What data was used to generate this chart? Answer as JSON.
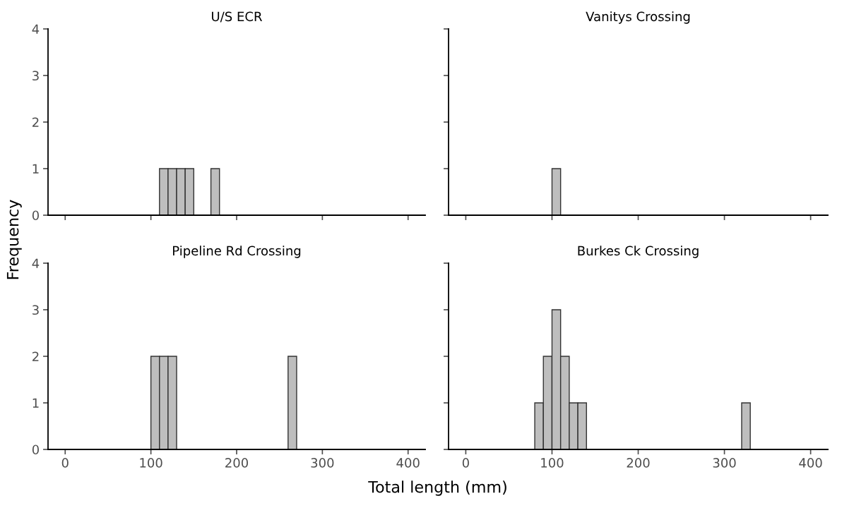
{
  "chart_data": [
    {
      "type": "histogram",
      "title": "U/S ECR",
      "ylabel": "Frequency",
      "bins": [
        110,
        120,
        130,
        140,
        150,
        160,
        170,
        180
      ],
      "values": [
        1,
        1,
        1,
        1,
        0,
        0,
        1
      ],
      "color": "#bebebe",
      "xlim": [
        -20,
        420
      ],
      "xticks": [
        0,
        100,
        200,
        300,
        400
      ],
      "ylim": [
        0,
        4
      ],
      "yticks": [
        0,
        1,
        2,
        3,
        4
      ],
      "tick_labels": "y",
      "grid": false,
      "legend": false
    },
    {
      "type": "histogram",
      "title": "Vanitys Crossing",
      "bins": [
        100,
        110
      ],
      "values": [
        1
      ],
      "color": "#bebebe",
      "xlim": [
        -20,
        420
      ],
      "xticks": [
        0,
        100,
        200,
        300,
        400
      ],
      "ylim": [
        0,
        4
      ],
      "yticks": [
        0,
        1,
        2,
        3,
        4
      ],
      "tick_labels": false,
      "grid": false,
      "legend": false
    },
    {
      "type": "histogram",
      "title": "Pipeline Rd Crossing",
      "bins": [
        100,
        110,
        120,
        130,
        140,
        150,
        160,
        170,
        180,
        190,
        200,
        210,
        220,
        230,
        240,
        250,
        260,
        270
      ],
      "values": [
        2,
        2,
        2,
        0,
        0,
        0,
        0,
        0,
        0,
        0,
        0,
        0,
        0,
        0,
        0,
        0,
        2
      ],
      "color": "#bebebe",
      "xlim": [
        -20,
        420
      ],
      "xticks": [
        0,
        100,
        200,
        300,
        400
      ],
      "ylim": [
        0,
        4
      ],
      "yticks": [
        0,
        1,
        2,
        3,
        4
      ],
      "grid": false,
      "legend": false
    },
    {
      "type": "histogram",
      "title": "Burkes Ck Crossing",
      "xlabel": "Total length (mm)",
      "bins": [
        80,
        90,
        100,
        110,
        120,
        130,
        140,
        150,
        160,
        170,
        180,
        190,
        200,
        210,
        220,
        230,
        240,
        250,
        260,
        270,
        280,
        290,
        300,
        310,
        320,
        330
      ],
      "values": [
        1,
        2,
        3,
        2,
        1,
        1,
        0,
        0,
        0,
        0,
        0,
        0,
        0,
        0,
        0,
        0,
        0,
        0,
        0,
        0,
        0,
        0,
        0,
        0,
        1
      ],
      "color": "#bebebe",
      "xlim": [
        -20,
        420
      ],
      "xticks": [
        0,
        100,
        200,
        300,
        400
      ],
      "ylim": [
        0,
        4
      ],
      "yticks": [
        0,
        1,
        2,
        3,
        4
      ],
      "tick_labels": "x",
      "grid": false,
      "legend": false
    }
  ]
}
